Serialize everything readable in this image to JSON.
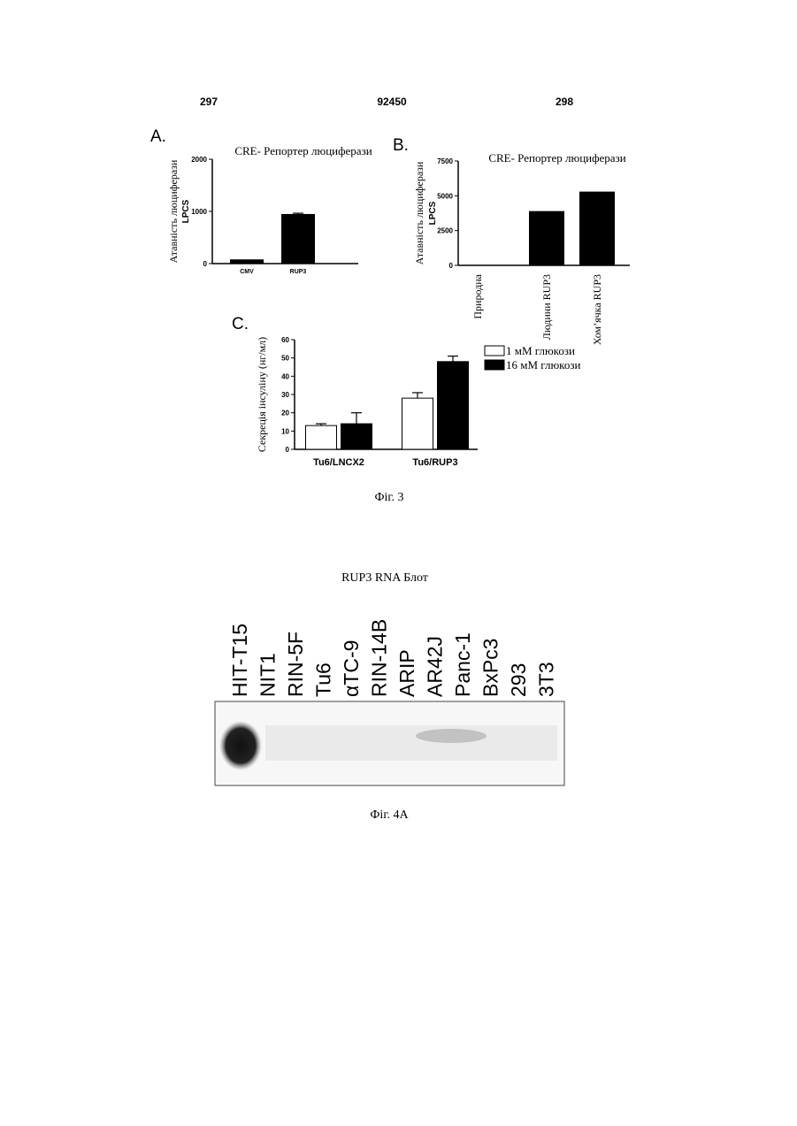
{
  "header": {
    "left": "297",
    "center": "92450",
    "right": "298"
  },
  "chart_data": [
    {
      "type": "bar",
      "panel": "A.",
      "title": "CRE- Репортер люциферази",
      "ylabel": "Атавність люциферази",
      "ylabel_unit": "LPCS",
      "categories": [
        "CMV",
        "RUP3"
      ],
      "values": [
        80,
        950
      ],
      "errors": [
        0,
        15
      ],
      "color": "#000000",
      "ylim": [
        0,
        2000
      ],
      "yticks": [
        0,
        1000,
        2000
      ]
    },
    {
      "type": "bar",
      "panel": "B.",
      "title": "CRE- Репортер люциферази",
      "ylabel": "Атавність люциферази",
      "ylabel_unit": "LPCS",
      "categories": [
        "Природна",
        "Людини RUP3",
        "Хом’ячка RUP3"
      ],
      "values": [
        30,
        3900,
        5300
      ],
      "color": "#000000",
      "ylim": [
        0,
        7500
      ],
      "yticks": [
        0,
        2500,
        5000,
        7500
      ]
    },
    {
      "type": "grouped_bar",
      "panel": "C.",
      "ylabel": "Секреція інсуліну (нг/мл)",
      "categories": [
        "Tu6/LNCX2",
        "Tu6/RUP3"
      ],
      "series": [
        {
          "name": "1 мМ глюкози",
          "color": "#ffffff",
          "values": [
            13,
            28
          ],
          "errors": [
            1,
            3
          ]
        },
        {
          "name": "16 мМ глюкози",
          "color": "#000000",
          "values": [
            14,
            48
          ],
          "errors": [
            6,
            3
          ]
        }
      ],
      "ylim": [
        0,
        60
      ],
      "yticks": [
        0,
        10,
        20,
        30,
        40,
        50,
        60
      ],
      "legend": "right"
    }
  ],
  "fig3_caption": "Фіг. 3",
  "blot": {
    "title": "RUP3 RNA Блот",
    "lanes": [
      "HIT-T15",
      "NIT1",
      "RIN-5F",
      "Tu6",
      "αTC-9",
      "RIN-14B",
      "ARIP",
      "AR42J",
      "Panc-1",
      "BxPc3",
      "293",
      "3T3"
    ]
  },
  "fig4_caption": "Фіг. 4A"
}
